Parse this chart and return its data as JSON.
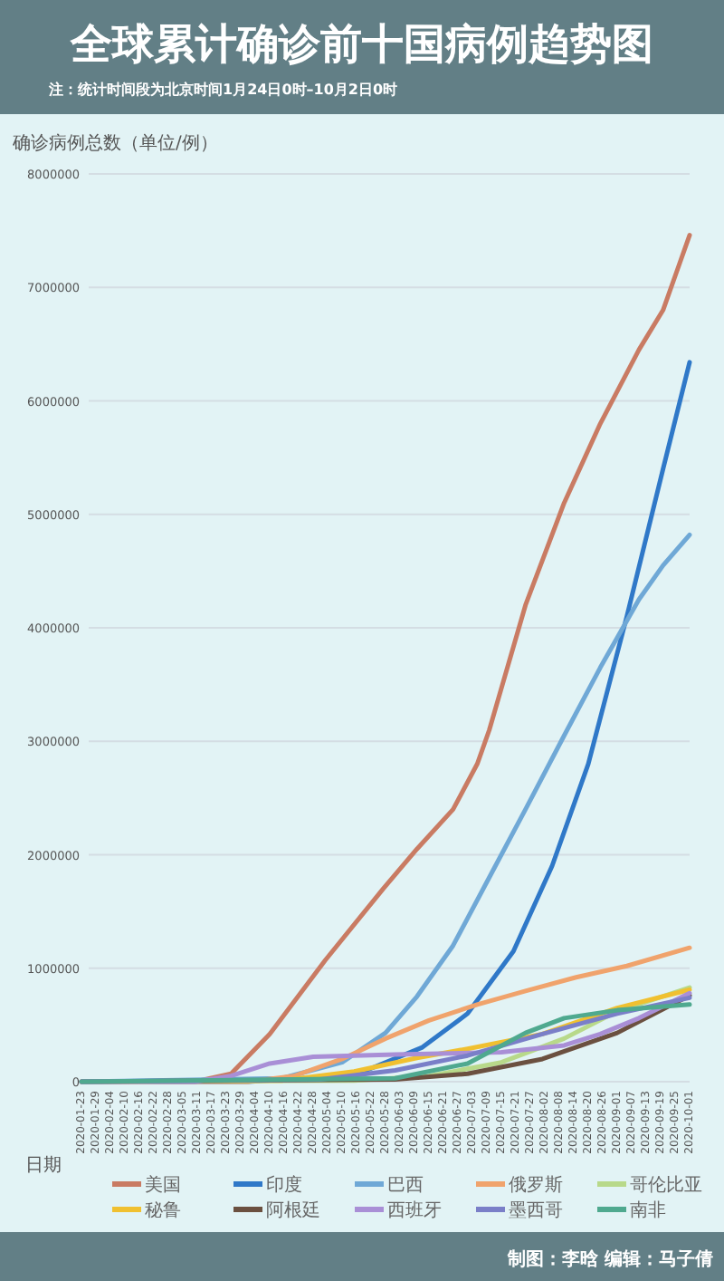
{
  "chart_data": {
    "type": "line",
    "title": "全球累计确诊前十国病例趋势图",
    "subtitle": "注：统计时间段为北京时间1月24日0时–10月2日0时",
    "xlabel": "日期",
    "ylabel": "确诊病例总数（单位/例）",
    "annotations": [
      "制图：李晗 编辑：马子倩"
    ],
    "xlim": [
      "2020-01-23",
      "2020-10-01"
    ],
    "ylim": [
      0,
      8000000
    ],
    "xticks": [
      "2020-01-23",
      "2020-01-29",
      "2020-02-04",
      "2020-02-10",
      "2020-02-16",
      "2020-02-22",
      "2020-02-28",
      "2020-03-05",
      "2020-03-11",
      "2020-03-17",
      "2020-03-23",
      "2020-03-29",
      "2020-04-04",
      "2020-04-10",
      "2020-04-16",
      "2020-04-22",
      "2020-04-28",
      "2020-05-04",
      "2020-05-10",
      "2020-05-16",
      "2020-05-22",
      "2020-05-28",
      "2020-06-03",
      "2020-06-09",
      "2020-06-15",
      "2020-06-21",
      "2020-06-27",
      "2020-07-03",
      "2020-07-09",
      "2020-07-15",
      "2020-07-21",
      "2020-07-27",
      "2020-08-02",
      "2020-08-08",
      "2020-08-14",
      "2020-08-20",
      "2020-08-26",
      "2020-09-01",
      "2020-09-07",
      "2020-09-13",
      "2020-09-19",
      "2020-09-25",
      "2020-10-01"
    ],
    "yticks": [
      0,
      1000000,
      2000000,
      3000000,
      4000000,
      5000000,
      6000000,
      7000000,
      8000000
    ],
    "grid": "y",
    "legend": "bottom",
    "series": [
      {
        "name": "美国",
        "color": "#c97b63",
        "x": [
          "2020-01-23",
          "2020-03-10",
          "2020-03-25",
          "2020-04-10",
          "2020-05-03",
          "2020-05-27",
          "2020-06-10",
          "2020-06-25",
          "2020-07-05",
          "2020-07-10",
          "2020-07-25",
          "2020-08-10",
          "2020-08-25",
          "2020-09-10",
          "2020-09-20",
          "2020-09-25",
          "2020-10-01"
        ],
        "values": [
          0,
          0,
          70000,
          420000,
          1070000,
          1700000,
          2050000,
          2400000,
          2800000,
          3100000,
          4200000,
          5100000,
          5800000,
          6450000,
          6800000,
          7100000,
          7460000
        ]
      },
      {
        "name": "印度",
        "color": "#2f78c8",
        "x": [
          "2020-01-23",
          "2020-04-01",
          "2020-05-01",
          "2020-05-20",
          "2020-06-12",
          "2020-07-01",
          "2020-07-20",
          "2020-08-05",
          "2020-08-20",
          "2020-09-05",
          "2020-09-20",
          "2020-10-01"
        ],
        "values": [
          0,
          0,
          40000,
          100000,
          300000,
          600000,
          1150000,
          1900000,
          2800000,
          4100000,
          5400000,
          6340000
        ]
      },
      {
        "name": "巴西",
        "color": "#6fa8d6",
        "x": [
          "2020-01-23",
          "2020-04-15",
          "2020-05-10",
          "2020-05-28",
          "2020-06-10",
          "2020-06-25",
          "2020-07-10",
          "2020-07-25",
          "2020-08-10",
          "2020-08-25",
          "2020-09-10",
          "2020-09-20",
          "2020-10-01"
        ],
        "values": [
          0,
          30000,
          170000,
          430000,
          750000,
          1200000,
          1800000,
          2400000,
          3050000,
          3650000,
          4250000,
          4550000,
          4820000
        ]
      },
      {
        "name": "俄罗斯",
        "color": "#f0a36c",
        "x": [
          "2020-01-23",
          "2020-04-01",
          "2020-04-20",
          "2020-05-10",
          "2020-05-28",
          "2020-06-15",
          "2020-07-05",
          "2020-07-25",
          "2020-08-15",
          "2020-09-05",
          "2020-10-01"
        ],
        "values": [
          0,
          0,
          50000,
          200000,
          380000,
          540000,
          680000,
          800000,
          920000,
          1020000,
          1180000
        ]
      },
      {
        "name": "哥伦比亚",
        "color": "#b8d98a",
        "x": [
          "2020-01-23",
          "2020-05-15",
          "2020-06-15",
          "2020-07-15",
          "2020-08-10",
          "2020-09-01",
          "2020-10-01"
        ],
        "values": [
          0,
          10000,
          50000,
          170000,
          380000,
          620000,
          830000
        ]
      },
      {
        "name": "秘鲁",
        "color": "#f0c030",
        "x": [
          "2020-01-23",
          "2020-04-15",
          "2020-05-15",
          "2020-06-10",
          "2020-07-01",
          "2020-08-01",
          "2020-09-01",
          "2020-10-01"
        ],
        "values": [
          0,
          10000,
          90000,
          210000,
          290000,
          420000,
          650000,
          810000
        ]
      },
      {
        "name": "阿根廷",
        "color": "#6b5040",
        "x": [
          "2020-01-23",
          "2020-06-01",
          "2020-07-01",
          "2020-08-01",
          "2020-09-01",
          "2020-10-01"
        ],
        "values": [
          0,
          20000,
          70000,
          200000,
          430000,
          760000
        ]
      },
      {
        "name": "西班牙",
        "color": "#a98fd6",
        "x": [
          "2020-01-23",
          "2020-03-10",
          "2020-03-25",
          "2020-04-10",
          "2020-04-28",
          "2020-06-01",
          "2020-07-15",
          "2020-08-10",
          "2020-08-25",
          "2020-09-10",
          "2020-10-01"
        ],
        "values": [
          0,
          0,
          50000,
          160000,
          220000,
          240000,
          260000,
          320000,
          420000,
          560000,
          780000
        ]
      },
      {
        "name": "墨西哥",
        "color": "#7a7fc8",
        "x": [
          "2020-01-23",
          "2020-05-01",
          "2020-06-01",
          "2020-07-01",
          "2020-08-01",
          "2020-09-01",
          "2020-10-01"
        ],
        "values": [
          0,
          20000,
          100000,
          230000,
          420000,
          600000,
          740000
        ]
      },
      {
        "name": "南非",
        "color": "#4fa98f",
        "x": [
          "2020-01-23",
          "2020-06-01",
          "2020-07-01",
          "2020-07-25",
          "2020-08-10",
          "2020-09-01",
          "2020-10-01"
        ],
        "values": [
          0,
          30000,
          160000,
          430000,
          560000,
          630000,
          680000
        ]
      }
    ]
  }
}
